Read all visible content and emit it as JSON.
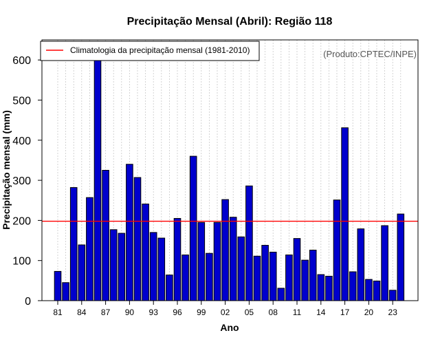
{
  "chart_data": {
    "type": "bar",
    "title": "Precipitação Mensal (Abril): Região 118",
    "xlabel": "Ano",
    "ylabel": "Precipitação mensal (mm)",
    "source_note": "(Produto:CPTEC/INPE)",
    "legend": {
      "label": "Climatologia da precipitação mensal (1981-2010)",
      "placement": "top-left"
    },
    "ylim": [
      0,
      650
    ],
    "yticks": [
      0,
      100,
      200,
      300,
      400,
      500,
      600
    ],
    "years": [
      1981,
      1982,
      1983,
      1984,
      1985,
      1986,
      1987,
      1988,
      1989,
      1990,
      1991,
      1992,
      1993,
      1994,
      1995,
      1996,
      1997,
      1998,
      1999,
      2000,
      2001,
      2002,
      2003,
      2004,
      2005,
      2006,
      2007,
      2008,
      2009,
      2010,
      2011,
      2012,
      2013,
      2014,
      2015,
      2016,
      2017,
      2018,
      2019,
      2020,
      2021,
      2022,
      2023,
      2024
    ],
    "values": [
      73,
      45,
      282,
      139,
      257,
      600,
      325,
      177,
      168,
      340,
      307,
      241,
      170,
      156,
      64,
      205,
      114,
      360,
      195,
      118,
      195,
      252,
      208,
      159,
      286,
      111,
      138,
      121,
      31,
      114,
      155,
      101,
      126,
      65,
      61,
      251,
      431,
      72,
      179,
      53,
      49,
      187,
      26,
      216
    ],
    "xtick_labels": [
      {
        "year": 1981,
        "label": "81"
      },
      {
        "year": 1984,
        "label": "84"
      },
      {
        "year": 1987,
        "label": "87"
      },
      {
        "year": 1990,
        "label": "90"
      },
      {
        "year": 1993,
        "label": "93"
      },
      {
        "year": 1996,
        "label": "96"
      },
      {
        "year": 1999,
        "label": "99"
      },
      {
        "year": 2002,
        "label": "02"
      },
      {
        "year": 2005,
        "label": "05"
      },
      {
        "year": 2008,
        "label": "08"
      },
      {
        "year": 2011,
        "label": "11"
      },
      {
        "year": 2014,
        "label": "14"
      },
      {
        "year": 2017,
        "label": "17"
      },
      {
        "year": 2020,
        "label": "20"
      },
      {
        "year": 2023,
        "label": "23"
      }
    ],
    "climatology": 198,
    "grid": "vertical dotted",
    "colors": {
      "bar_fill": "#0000cd",
      "bar_stroke": "#000000",
      "climatology_line": "#ff0000",
      "grid": "#c8c8c8",
      "source_text": "#555555"
    }
  }
}
